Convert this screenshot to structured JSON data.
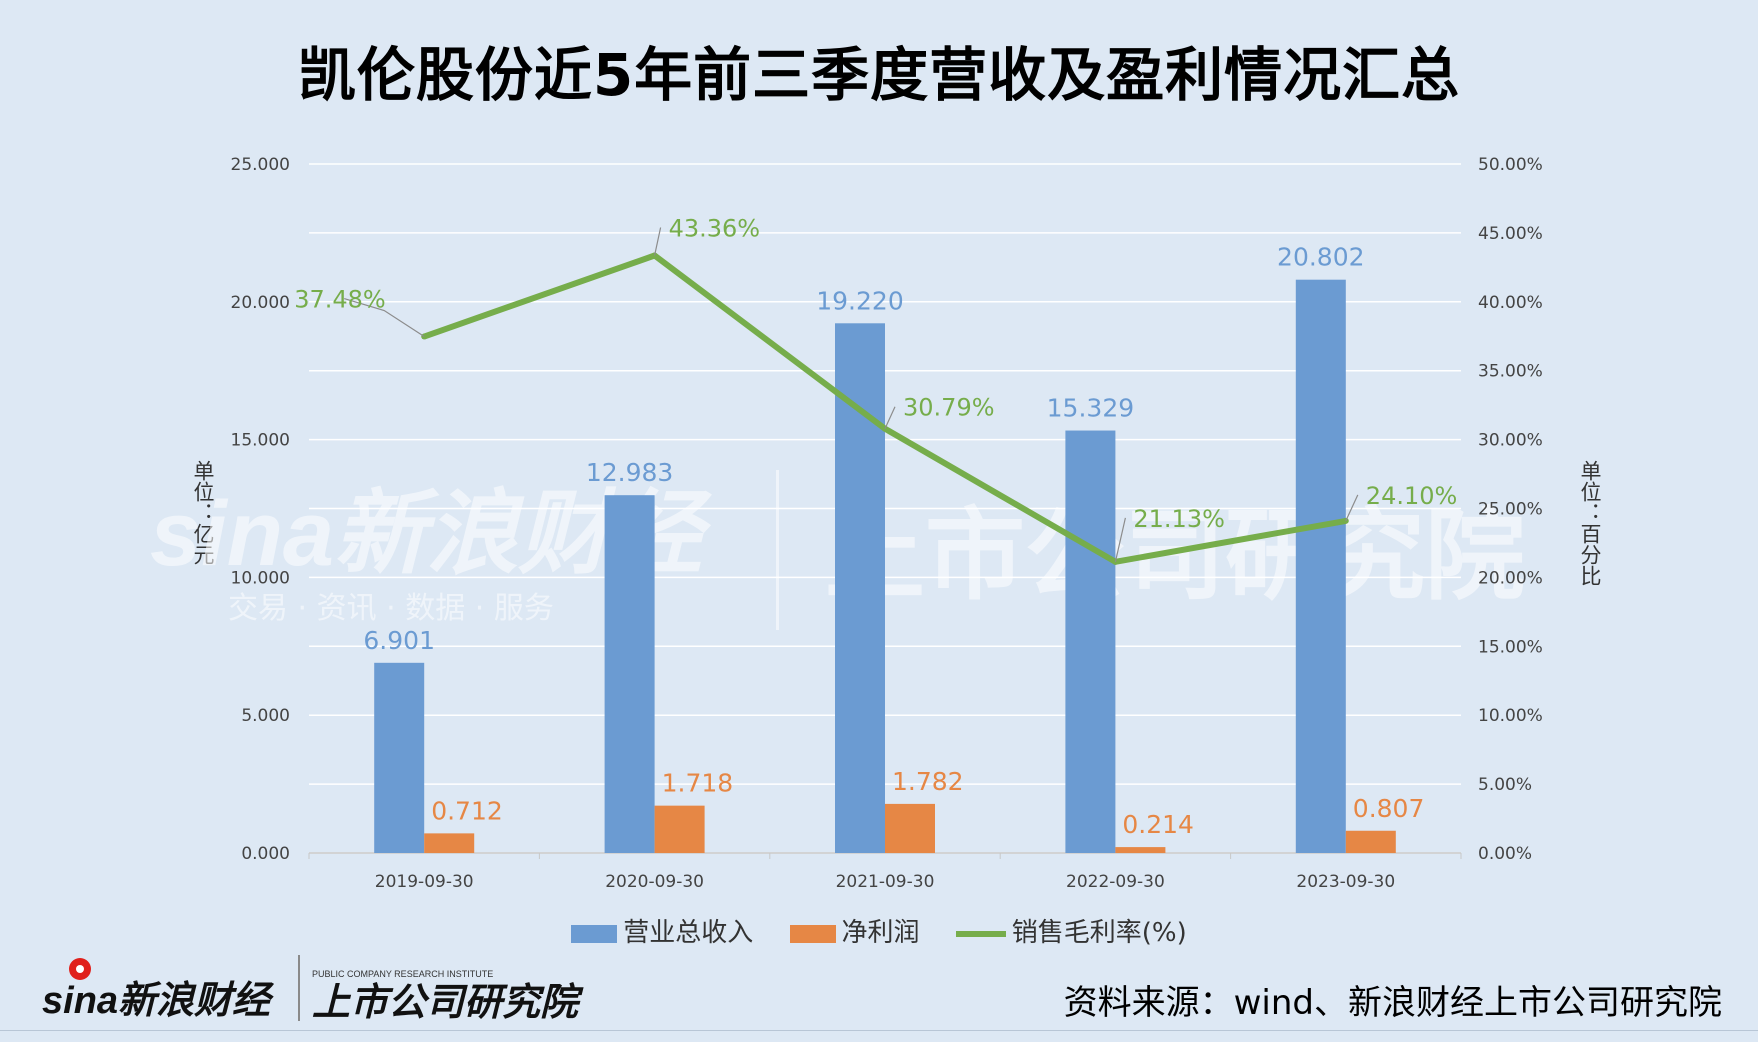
{
  "title": "凯伦股份近5年前三季度营收及盈利情况汇总",
  "left_axis_label": "单位：亿元",
  "right_axis_label": "单位：百分比",
  "source": "资料来源：wind、新浪财经上市公司研究院",
  "logos": {
    "sina": "sina新浪财经",
    "institute": "上市公司研究院",
    "institute_en": "PUBLIC COMPANY RESEARCH INSTITUTE",
    "watermark_sub": "交易 · 资讯 · 数据 · 服务"
  },
  "colors": {
    "revenue": "#6b9bd2",
    "profit": "#e68745",
    "margin": "#76ad4b",
    "background": "#dde8f4",
    "grid": "#ffffff"
  },
  "chart_data": {
    "type": "bar",
    "categories": [
      "2019-09-30",
      "2020-09-30",
      "2021-09-30",
      "2022-09-30",
      "2023-09-30"
    ],
    "series": [
      {
        "name": "营业总收入",
        "type": "bar",
        "axis": "left",
        "values": [
          6.901,
          12.983,
          19.22,
          15.329,
          20.802
        ],
        "labels": [
          "6.901",
          "12.983",
          "19.220",
          "15.329",
          "20.802"
        ]
      },
      {
        "name": "净利润",
        "type": "bar",
        "axis": "left",
        "values": [
          0.712,
          1.718,
          1.782,
          0.214,
          0.807
        ],
        "labels": [
          "0.712",
          "1.718",
          "1.782",
          "0.214",
          "0.807"
        ]
      },
      {
        "name": "销售毛利率(%)",
        "type": "line",
        "axis": "right",
        "values": [
          37.48,
          43.36,
          30.79,
          21.13,
          24.1
        ],
        "labels": [
          "37.48%",
          "43.36%",
          "30.79%",
          "21.13%",
          "24.10%"
        ]
      }
    ],
    "left_axis": {
      "ylim": [
        0,
        25
      ],
      "ticks": [
        "0.000",
        "5.000",
        "10.000",
        "15.000",
        "20.000",
        "25.000"
      ]
    },
    "right_axis": {
      "ylim": [
        0,
        50
      ],
      "ticks": [
        "0.00%",
        "5.00%",
        "10.00%",
        "15.00%",
        "20.00%",
        "25.00%",
        "30.00%",
        "35.00%",
        "40.00%",
        "45.00%",
        "50.00%"
      ]
    },
    "grid": true,
    "legend": "bottom"
  }
}
